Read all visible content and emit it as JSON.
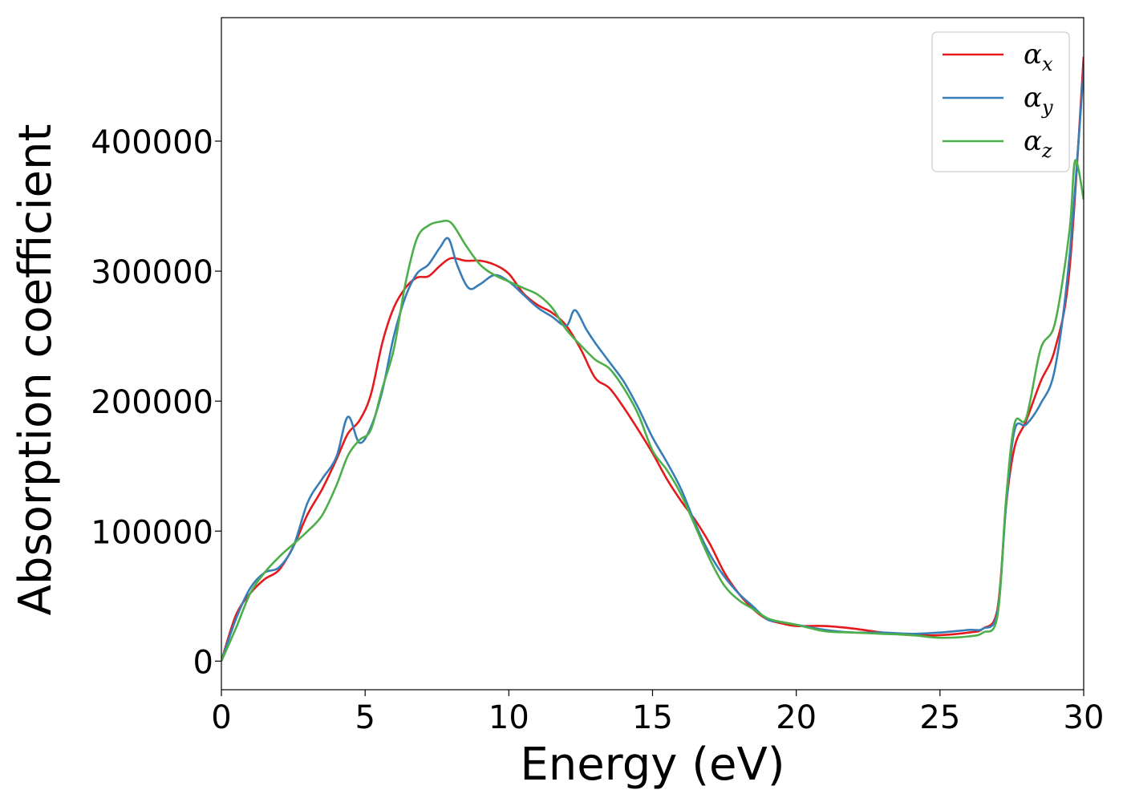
{
  "chart_data": {
    "type": "line",
    "xlabel": "Energy (eV)",
    "ylabel": "Absorption coefficient",
    "xlim": [
      0,
      30
    ],
    "ylim": [
      -22000,
      495000
    ],
    "x_ticks": [
      0,
      5,
      10,
      15,
      20,
      25,
      30
    ],
    "x_tick_labels": [
      "0",
      "5",
      "10",
      "15",
      "20",
      "25",
      "30"
    ],
    "y_ticks": [
      0,
      100000,
      200000,
      300000,
      400000
    ],
    "y_tick_labels": [
      "0",
      "100000",
      "200000",
      "300000",
      "400000"
    ],
    "grid": false,
    "legend_position": "top-right",
    "series": [
      {
        "name": "α_x",
        "legend_main": "α",
        "legend_sub": "x",
        "color": "#e41a1c",
        "points": [
          [
            0,
            0
          ],
          [
            0.5,
            35000
          ],
          [
            1,
            52000
          ],
          [
            1.5,
            63000
          ],
          [
            2,
            70000
          ],
          [
            2.5,
            88000
          ],
          [
            3,
            113000
          ],
          [
            3.5,
            132000
          ],
          [
            4,
            155000
          ],
          [
            4.4,
            175000
          ],
          [
            4.8,
            185000
          ],
          [
            5.2,
            205000
          ],
          [
            5.6,
            245000
          ],
          [
            6,
            272000
          ],
          [
            6.4,
            287000
          ],
          [
            6.8,
            295000
          ],
          [
            7.2,
            296000
          ],
          [
            7.6,
            304000
          ],
          [
            8,
            310000
          ],
          [
            8.5,
            308000
          ],
          [
            9,
            308000
          ],
          [
            9.5,
            305000
          ],
          [
            10,
            298000
          ],
          [
            10.5,
            283000
          ],
          [
            11,
            274000
          ],
          [
            11.5,
            268000
          ],
          [
            12,
            258000
          ],
          [
            12.5,
            240000
          ],
          [
            13,
            218000
          ],
          [
            13.5,
            210000
          ],
          [
            14,
            195000
          ],
          [
            14.5,
            178000
          ],
          [
            15,
            160000
          ],
          [
            15.5,
            140000
          ],
          [
            16,
            123000
          ],
          [
            16.5,
            108000
          ],
          [
            17,
            90000
          ],
          [
            17.5,
            68000
          ],
          [
            18,
            52000
          ],
          [
            18.5,
            40000
          ],
          [
            19,
            32000
          ],
          [
            19.5,
            29000
          ],
          [
            20,
            27000
          ],
          [
            21,
            27000
          ],
          [
            22,
            25000
          ],
          [
            23,
            22000
          ],
          [
            24,
            20000
          ],
          [
            25,
            20000
          ],
          [
            26,
            22000
          ],
          [
            26.5,
            25000
          ],
          [
            27,
            40000
          ],
          [
            27.3,
            120000
          ],
          [
            27.6,
            165000
          ],
          [
            28,
            185000
          ],
          [
            28.5,
            215000
          ],
          [
            29,
            240000
          ],
          [
            29.5,
            300000
          ],
          [
            30,
            465000
          ]
        ]
      },
      {
        "name": "α_y",
        "legend_main": "α",
        "legend_sub": "y",
        "color": "#377eb8",
        "points": [
          [
            0,
            0
          ],
          [
            0.5,
            32000
          ],
          [
            1,
            56000
          ],
          [
            1.5,
            68000
          ],
          [
            2,
            72000
          ],
          [
            2.5,
            88000
          ],
          [
            3,
            122000
          ],
          [
            3.5,
            140000
          ],
          [
            4,
            157000
          ],
          [
            4.4,
            188000
          ],
          [
            4.8,
            168000
          ],
          [
            5.2,
            180000
          ],
          [
            5.6,
            208000
          ],
          [
            6,
            250000
          ],
          [
            6.4,
            280000
          ],
          [
            6.8,
            298000
          ],
          [
            7.2,
            305000
          ],
          [
            7.6,
            318000
          ],
          [
            7.9,
            325000
          ],
          [
            8.2,
            305000
          ],
          [
            8.6,
            287000
          ],
          [
            9,
            290000
          ],
          [
            9.5,
            297000
          ],
          [
            10,
            292000
          ],
          [
            10.5,
            282000
          ],
          [
            11,
            272000
          ],
          [
            11.5,
            265000
          ],
          [
            12,
            258000
          ],
          [
            12.3,
            270000
          ],
          [
            12.7,
            255000
          ],
          [
            13,
            245000
          ],
          [
            13.5,
            230000
          ],
          [
            14,
            215000
          ],
          [
            14.5,
            195000
          ],
          [
            15,
            172000
          ],
          [
            15.5,
            153000
          ],
          [
            16,
            132000
          ],
          [
            16.5,
            105000
          ],
          [
            17,
            82000
          ],
          [
            17.5,
            65000
          ],
          [
            18,
            52000
          ],
          [
            18.5,
            42000
          ],
          [
            19,
            32000
          ],
          [
            19.5,
            30000
          ],
          [
            20,
            28000
          ],
          [
            21,
            24000
          ],
          [
            22,
            22000
          ],
          [
            23,
            22000
          ],
          [
            24,
            21000
          ],
          [
            25,
            22000
          ],
          [
            26,
            24000
          ],
          [
            26.5,
            25000
          ],
          [
            27,
            38000
          ],
          [
            27.3,
            120000
          ],
          [
            27.6,
            178000
          ],
          [
            28,
            182000
          ],
          [
            28.5,
            198000
          ],
          [
            29,
            225000
          ],
          [
            29.5,
            310000
          ],
          [
            30,
            455000
          ]
        ]
      },
      {
        "name": "α_z",
        "legend_main": "α",
        "legend_sub": "z",
        "color": "#4daf4a",
        "points": [
          [
            0,
            0
          ],
          [
            0.5,
            25000
          ],
          [
            1,
            52000
          ],
          [
            1.5,
            68000
          ],
          [
            2,
            80000
          ],
          [
            2.5,
            90000
          ],
          [
            3,
            100000
          ],
          [
            3.5,
            112000
          ],
          [
            4,
            135000
          ],
          [
            4.4,
            158000
          ],
          [
            4.8,
            170000
          ],
          [
            5.2,
            178000
          ],
          [
            5.6,
            210000
          ],
          [
            6,
            240000
          ],
          [
            6.4,
            290000
          ],
          [
            6.8,
            325000
          ],
          [
            7.2,
            335000
          ],
          [
            7.6,
            338000
          ],
          [
            8,
            337000
          ],
          [
            8.5,
            320000
          ],
          [
            9,
            305000
          ],
          [
            9.5,
            297000
          ],
          [
            10,
            292000
          ],
          [
            10.5,
            287000
          ],
          [
            11,
            282000
          ],
          [
            11.5,
            272000
          ],
          [
            12,
            255000
          ],
          [
            12.5,
            243000
          ],
          [
            13,
            232000
          ],
          [
            13.5,
            225000
          ],
          [
            14,
            210000
          ],
          [
            14.5,
            190000
          ],
          [
            15,
            162000
          ],
          [
            15.5,
            147000
          ],
          [
            16,
            128000
          ],
          [
            16.5,
            103000
          ],
          [
            17,
            78000
          ],
          [
            17.5,
            58000
          ],
          [
            18,
            47000
          ],
          [
            18.5,
            40000
          ],
          [
            19,
            33000
          ],
          [
            19.5,
            30000
          ],
          [
            20,
            28000
          ],
          [
            21,
            23000
          ],
          [
            22,
            22000
          ],
          [
            23,
            21000
          ],
          [
            24,
            20000
          ],
          [
            25,
            18000
          ],
          [
            26,
            19000
          ],
          [
            26.5,
            22000
          ],
          [
            27,
            35000
          ],
          [
            27.3,
            125000
          ],
          [
            27.6,
            183000
          ],
          [
            28,
            187000
          ],
          [
            28.5,
            240000
          ],
          [
            29,
            260000
          ],
          [
            29.5,
            330000
          ],
          [
            29.7,
            385000
          ],
          [
            30,
            355000
          ]
        ]
      }
    ]
  }
}
